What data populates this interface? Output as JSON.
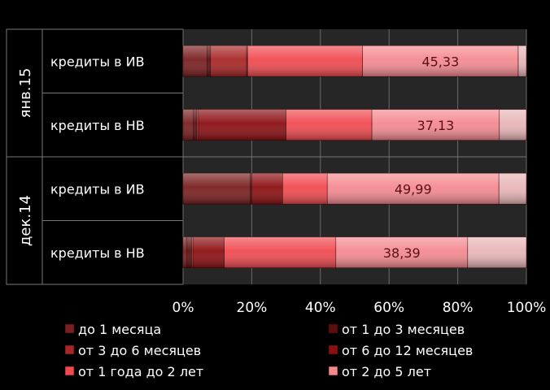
{
  "chart_data": {
    "type": "bar",
    "orientation": "horizontal",
    "stacking": "percent",
    "groups": [
      {
        "label": "янв.15",
        "rows": [
          "кредиты в ИВ",
          "кредиты в НВ"
        ]
      },
      {
        "label": "дек.14",
        "rows": [
          "кредиты в ИВ",
          "кредиты в НВ"
        ]
      }
    ],
    "categories": [
      "янв.15 кредиты в ИВ",
      "янв.15 кредиты в НВ",
      "дек.14 кредиты в ИВ",
      "дек.14 кредиты в НВ"
    ],
    "series": [
      {
        "name": "до 1 месяца",
        "color": "#7a1f1f",
        "values": [
          7.0,
          3.0,
          19.5,
          1.0
        ]
      },
      {
        "name": "от 1 до 3 месяцев",
        "color": "#5c0f0f",
        "values": [
          1.0,
          1.0,
          0.3,
          1.5
        ]
      },
      {
        "name": "от 3 до 6 месяцев",
        "color": "#a82626",
        "values": [
          10.5,
          0.5,
          0.2,
          0.5
        ]
      },
      {
        "name": "от 6 до 12 месяцев",
        "color": "#8c0f12",
        "values": [
          0.3,
          25.5,
          9.0,
          9.0
        ]
      },
      {
        "name": "от 1 года до 2 лет",
        "color": "#f04a50",
        "values": [
          33.5,
          25.0,
          13.0,
          32.5
        ]
      },
      {
        "name": "от 2 до 5 лет",
        "color": "#f48a90",
        "values": [
          45.33,
          37.13,
          49.99,
          38.39
        ]
      },
      {
        "name": "",
        "color": "#e8b6b8",
        "values": [
          2.37,
          7.87,
          8.01,
          17.11
        ]
      }
    ],
    "data_labels": [
      {
        "row": 0,
        "series": 5,
        "text": "45,33"
      },
      {
        "row": 1,
        "series": 5,
        "text": "37,13"
      },
      {
        "row": 2,
        "series": 5,
        "text": "49,99"
      },
      {
        "row": 3,
        "series": 5,
        "text": "38,39"
      }
    ],
    "x_ticks": [
      "0%",
      "20%",
      "40%",
      "60%",
      "80%",
      "100%"
    ],
    "xlim": [
      0,
      100
    ],
    "grid": true,
    "legend_position": "bottom",
    "title": "",
    "xlabel": "",
    "ylabel": ""
  }
}
